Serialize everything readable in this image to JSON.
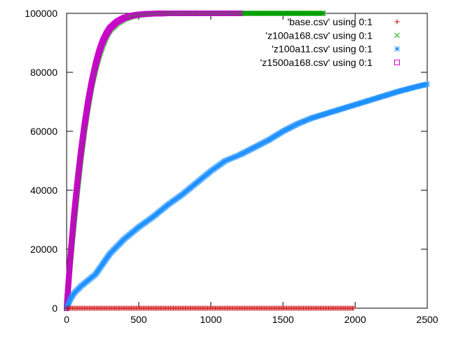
{
  "chart_data": {
    "type": "scatter",
    "title": "",
    "xlabel": "",
    "ylabel": "",
    "xlim": [
      0,
      2500
    ],
    "ylim": [
      0,
      100000
    ],
    "x_ticks": [
      0,
      500,
      1000,
      1500,
      2000,
      2500
    ],
    "y_ticks": [
      0,
      20000,
      40000,
      60000,
      80000,
      100000
    ],
    "x_tick_labels": [
      "0",
      "500",
      "1000",
      "1500",
      "2000",
      "2500"
    ],
    "y_tick_labels": [
      "0",
      "20000",
      "40000",
      "60000",
      "80000",
      "100000"
    ],
    "grid": false,
    "legend_position": "top-right",
    "series": [
      {
        "name": "'base.csv' using 0:1",
        "marker": "plus",
        "color": "#cc0000",
        "x": [
          0,
          100,
          200,
          300,
          400,
          500,
          600,
          700,
          800,
          900,
          1000,
          1100,
          1200,
          1300,
          1400,
          1500,
          1600,
          1700,
          1800,
          1900,
          1990
        ],
        "y": [
          0,
          0,
          0,
          0,
          0,
          0,
          0,
          0,
          0,
          0,
          0,
          0,
          0,
          0,
          0,
          0,
          0,
          0,
          0,
          0,
          0
        ]
      },
      {
        "name": "'z100a168.csv' using 0:1",
        "marker": "cross",
        "color": "#00a000",
        "x": [
          0,
          25,
          50,
          75,
          100,
          125,
          150,
          175,
          200,
          225,
          250,
          275,
          300,
          350,
          400,
          450,
          500,
          600,
          700,
          800,
          900,
          1000,
          1100,
          1200,
          1300,
          1400,
          1500,
          1600,
          1700,
          1780
        ],
        "y": [
          0,
          15000,
          28000,
          40000,
          51000,
          60500,
          68500,
          75500,
          81000,
          85500,
          89000,
          92000,
          94200,
          96500,
          98000,
          98900,
          99400,
          99800,
          99950,
          100000,
          100000,
          100000,
          100000,
          100000,
          100000,
          100000,
          100000,
          100000,
          100000,
          100000
        ]
      },
      {
        "name": "'z100a11.csv' using 0:1",
        "marker": "star",
        "color": "#1e90ff",
        "x": [
          0,
          25,
          50,
          100,
          150,
          200,
          250,
          300,
          350,
          400,
          450,
          500,
          600,
          700,
          800,
          900,
          1000,
          1100,
          1150,
          1200,
          1300,
          1400,
          1500,
          1600,
          1700,
          1800,
          1900,
          2000,
          2100,
          2200,
          2300,
          2400,
          2500
        ],
        "y": [
          0,
          3000,
          5000,
          7500,
          9500,
          11500,
          15000,
          18500,
          21000,
          23500,
          25500,
          27500,
          31000,
          35000,
          38500,
          42500,
          46500,
          50000,
          51000,
          52000,
          54500,
          57000,
          60000,
          62500,
          64500,
          66000,
          67500,
          69000,
          70500,
          72000,
          73500,
          74800,
          76000
        ]
      },
      {
        "name": "'z1500a168.csv' using 0:1",
        "marker": "square",
        "color": "#cc00cc",
        "x": [
          0,
          25,
          50,
          75,
          100,
          125,
          150,
          175,
          200,
          225,
          250,
          275,
          300,
          350,
          400,
          450,
          500,
          550,
          600,
          700,
          800,
          900,
          1000,
          1100,
          1200
        ],
        "y": [
          0,
          17000,
          31000,
          43000,
          53500,
          62500,
          70500,
          77000,
          82500,
          87000,
          90500,
          93000,
          95000,
          97200,
          98500,
          99200,
          99600,
          99800,
          99900,
          100000,
          100000,
          100000,
          100000,
          100000,
          100000
        ]
      }
    ]
  }
}
